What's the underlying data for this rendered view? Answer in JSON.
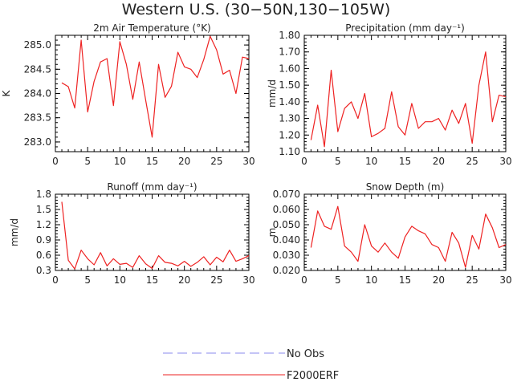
{
  "title": "Western U.S. (30−50N,130−105W)",
  "legend": {
    "entries": [
      {
        "label": "No Obs",
        "color": "#8888ee",
        "style": "dashed"
      },
      {
        "label": "F2000ERF",
        "color": "#ee2222",
        "style": "solid"
      }
    ]
  },
  "chart_data": [
    {
      "type": "line",
      "title": "2m Air Temperature (°K)",
      "ylabel": "K",
      "xlabel": "",
      "xlim": [
        0,
        30
      ],
      "ylim": [
        282.8,
        285.2
      ],
      "xticks": [
        0,
        5,
        10,
        15,
        20,
        25,
        30
      ],
      "yticks": [
        283.0,
        283.5,
        284.0,
        284.5,
        285.0
      ],
      "ytick_labels": [
        "283.0",
        "283.5",
        "284.0",
        "284.5",
        "285.0"
      ],
      "series": [
        {
          "name": "F2000ERF",
          "color": "#ee2222",
          "x": [
            1,
            2,
            3,
            4,
            5,
            6,
            7,
            8,
            9,
            10,
            11,
            12,
            13,
            14,
            15,
            16,
            17,
            18,
            19,
            20,
            21,
            22,
            23,
            24,
            25,
            26,
            27,
            28,
            29,
            30
          ],
          "values": [
            284.22,
            284.14,
            283.7,
            285.1,
            283.62,
            284.25,
            284.65,
            284.72,
            283.75,
            285.07,
            284.6,
            283.88,
            284.65,
            283.86,
            283.1,
            284.6,
            283.92,
            284.15,
            284.85,
            284.55,
            284.5,
            284.33,
            284.7,
            285.18,
            284.9,
            284.4,
            284.48,
            284.0,
            284.75,
            284.72
          ]
        }
      ]
    },
    {
      "type": "line",
      "title": "Precipitation (mm day⁻¹)",
      "ylabel": "mm/d",
      "xlabel": "",
      "xlim": [
        0,
        30
      ],
      "ylim": [
        1.1,
        1.8
      ],
      "xticks": [
        0,
        5,
        10,
        15,
        20,
        25,
        30
      ],
      "yticks": [
        1.1,
        1.2,
        1.3,
        1.4,
        1.5,
        1.6,
        1.7,
        1.8
      ],
      "ytick_labels": [
        "1.10",
        "1.20",
        "1.30",
        "1.40",
        "1.50",
        "1.60",
        "1.70",
        "1.80"
      ],
      "series": [
        {
          "name": "F2000ERF",
          "color": "#ee2222",
          "x": [
            1,
            2,
            3,
            4,
            5,
            6,
            7,
            8,
            9,
            10,
            11,
            12,
            13,
            14,
            15,
            16,
            17,
            18,
            19,
            20,
            21,
            22,
            23,
            24,
            25,
            26,
            27,
            28,
            29,
            30
          ],
          "values": [
            1.17,
            1.38,
            1.13,
            1.59,
            1.22,
            1.36,
            1.4,
            1.3,
            1.45,
            1.19,
            1.21,
            1.24,
            1.46,
            1.25,
            1.2,
            1.39,
            1.24,
            1.28,
            1.28,
            1.3,
            1.23,
            1.35,
            1.27,
            1.39,
            1.15,
            1.5,
            1.7,
            1.28,
            1.44,
            1.43
          ]
        }
      ]
    },
    {
      "type": "line",
      "title": "Runoff (mm day⁻¹)",
      "ylabel": "mm/d",
      "xlabel": "",
      "xlim": [
        0,
        30
      ],
      "ylim": [
        0.3,
        1.8
      ],
      "xticks": [
        0,
        5,
        10,
        15,
        20,
        25,
        30
      ],
      "yticks": [
        0.3,
        0.6,
        0.9,
        1.2,
        1.5,
        1.8
      ],
      "ytick_labels": [
        "0.3",
        "0.6",
        "0.9",
        "1.2",
        "1.5",
        "1.8"
      ],
      "series": [
        {
          "name": "F2000ERF",
          "color": "#ee2222",
          "x": [
            1,
            2,
            3,
            4,
            5,
            6,
            7,
            8,
            9,
            10,
            11,
            12,
            13,
            14,
            15,
            16,
            17,
            18,
            19,
            20,
            21,
            22,
            23,
            24,
            25,
            26,
            27,
            28,
            29,
            30
          ],
          "values": [
            1.65,
            0.5,
            0.33,
            0.7,
            0.53,
            0.41,
            0.65,
            0.39,
            0.53,
            0.42,
            0.44,
            0.36,
            0.59,
            0.43,
            0.34,
            0.59,
            0.46,
            0.44,
            0.39,
            0.48,
            0.38,
            0.46,
            0.57,
            0.41,
            0.56,
            0.47,
            0.7,
            0.48,
            0.53,
            0.59
          ]
        }
      ]
    },
    {
      "type": "line",
      "title": "Snow Depth (m)",
      "ylabel": "m",
      "xlabel": "",
      "xlim": [
        0,
        30
      ],
      "ylim": [
        0.02,
        0.07
      ],
      "xticks": [
        0,
        5,
        10,
        15,
        20,
        25,
        30
      ],
      "yticks": [
        0.02,
        0.03,
        0.04,
        0.05,
        0.06,
        0.07
      ],
      "ytick_labels": [
        "0.020",
        "0.030",
        "0.040",
        "0.050",
        "0.060",
        "0.070"
      ],
      "series": [
        {
          "name": "F2000ERF",
          "color": "#ee2222",
          "x": [
            1,
            2,
            3,
            4,
            5,
            6,
            7,
            8,
            9,
            10,
            11,
            12,
            13,
            14,
            15,
            16,
            17,
            18,
            19,
            20,
            21,
            22,
            23,
            24,
            25,
            26,
            27,
            28,
            29,
            30
          ],
          "values": [
            0.035,
            0.059,
            0.049,
            0.047,
            0.062,
            0.036,
            0.032,
            0.026,
            0.05,
            0.036,
            0.032,
            0.038,
            0.032,
            0.028,
            0.042,
            0.049,
            0.046,
            0.044,
            0.037,
            0.035,
            0.026,
            0.045,
            0.038,
            0.022,
            0.043,
            0.034,
            0.057,
            0.048,
            0.035,
            0.037
          ]
        }
      ]
    }
  ]
}
